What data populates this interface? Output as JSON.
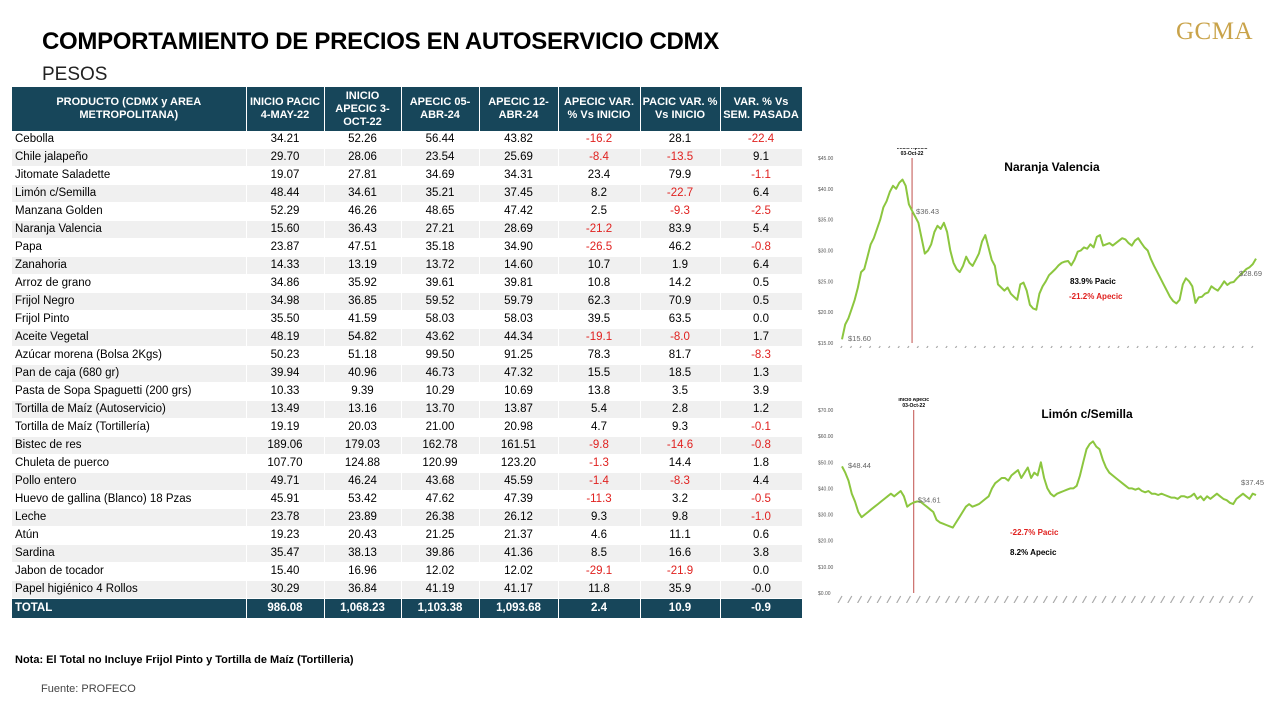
{
  "title": "COMPORTAMIENTO DE PRECIOS EN AUTOSERVICIO CDMX",
  "subtitle": "PESOS",
  "logo": "GCMA",
  "table": {
    "headers": [
      "PRODUCTO (CDMX y AREA METROPOLITANA)",
      "INICIO PACIC 4-MAY-22",
      "INICIO APECIC 3-OCT-22",
      "APECIC 05-ABR-24",
      "APECIC 12-ABR-24",
      "APECIC VAR. % Vs INICIO",
      "PACIC VAR. % Vs INICIO",
      "VAR. % Vs SEM. PASADA"
    ],
    "rows": [
      [
        "Cebolla",
        "34.21",
        "52.26",
        "56.44",
        "43.82",
        "-16.2",
        "28.1",
        "-22.4"
      ],
      [
        "Chile jalapeño",
        "29.70",
        "28.06",
        "23.54",
        "25.69",
        "-8.4",
        "-13.5",
        "9.1"
      ],
      [
        "Jitomate Saladette",
        "19.07",
        "27.81",
        "34.69",
        "34.31",
        "23.4",
        "79.9",
        "-1.1"
      ],
      [
        "Limón c/Semilla",
        "48.44",
        "34.61",
        "35.21",
        "37.45",
        "8.2",
        "-22.7",
        "6.4"
      ],
      [
        "Manzana Golden",
        "52.29",
        "46.26",
        "48.65",
        "47.42",
        "2.5",
        "-9.3",
        "-2.5"
      ],
      [
        "Naranja Valencia",
        "15.60",
        "36.43",
        "27.21",
        "28.69",
        "-21.2",
        "83.9",
        "5.4"
      ],
      [
        "Papa",
        "23.87",
        "47.51",
        "35.18",
        "34.90",
        "-26.5",
        "46.2",
        "-0.8"
      ],
      [
        "Zanahoria",
        "14.33",
        "13.19",
        "13.72",
        "14.60",
        "10.7",
        "1.9",
        "6.4"
      ],
      [
        "Arroz de grano",
        "34.86",
        "35.92",
        "39.61",
        "39.81",
        "10.8",
        "14.2",
        "0.5"
      ],
      [
        "Frijol Negro",
        "34.98",
        "36.85",
        "59.52",
        "59.79",
        "62.3",
        "70.9",
        "0.5"
      ],
      [
        "Frijol Pinto",
        "35.50",
        "41.59",
        "58.03",
        "58.03",
        "39.5",
        "63.5",
        "0.0"
      ],
      [
        "Aceite Vegetal",
        "48.19",
        "54.82",
        "43.62",
        "44.34",
        "-19.1",
        "-8.0",
        "1.7"
      ],
      [
        "Azúcar morena (Bolsa 2Kgs)",
        "50.23",
        "51.18",
        "99.50",
        "91.25",
        "78.3",
        "81.7",
        "-8.3"
      ],
      [
        "Pan de caja (680 gr)",
        "39.94",
        "40.96",
        "46.73",
        "47.32",
        "15.5",
        "18.5",
        "1.3"
      ],
      [
        "Pasta de Sopa Spaguetti (200 grs)",
        "10.33",
        "9.39",
        "10.29",
        "10.69",
        "13.8",
        "3.5",
        "3.9"
      ],
      [
        "Tortilla de Maíz (Autoservicio)",
        "13.49",
        "13.16",
        "13.70",
        "13.87",
        "5.4",
        "2.8",
        "1.2"
      ],
      [
        "Tortilla de Maíz (Tortillería)",
        "19.19",
        "20.03",
        "21.00",
        "20.98",
        "4.7",
        "9.3",
        "-0.1"
      ],
      [
        "Bistec de res",
        "189.06",
        "179.03",
        "162.78",
        "161.51",
        "-9.8",
        "-14.6",
        "-0.8"
      ],
      [
        "Chuleta de puerco",
        "107.70",
        "124.88",
        "120.99",
        "123.20",
        "-1.3",
        "14.4",
        "1.8"
      ],
      [
        "Pollo entero",
        "49.71",
        "46.24",
        "43.68",
        "45.59",
        "-1.4",
        "-8.3",
        "4.4"
      ],
      [
        "Huevo de gallina (Blanco) 18 Pzas",
        "45.91",
        "53.42",
        "47.62",
        "47.39",
        "-11.3",
        "3.2",
        "-0.5"
      ],
      [
        "Leche",
        "23.78",
        "23.89",
        "26.38",
        "26.12",
        "9.3",
        "9.8",
        "-1.0"
      ],
      [
        "Atún",
        "19.23",
        "20.43",
        "21.25",
        "21.37",
        "4.6",
        "11.1",
        "0.6"
      ],
      [
        "Sardina",
        "35.47",
        "38.13",
        "39.86",
        "41.36",
        "8.5",
        "16.6",
        "3.8"
      ],
      [
        "Jabon de tocador",
        "15.40",
        "16.96",
        "12.02",
        "12.02",
        "-29.1",
        "-21.9",
        "0.0"
      ],
      [
        "Papel higiénico 4 Rollos",
        "30.29",
        "36.84",
        "41.19",
        "41.17",
        "11.8",
        "35.9",
        "-0.0"
      ]
    ],
    "total": [
      "TOTAL",
      "986.08",
      "1,068.23",
      "1,103.38",
      "1,093.68",
      "2.4",
      "10.9",
      "-0.9"
    ]
  },
  "note": "Nota: El Total no Incluye Frijol Pinto y Tortilla de Maíz (Tortilleria)",
  "source": "Fuente:  PROFECO",
  "colors": {
    "header_bg": "#17465a",
    "negative": "#e0211f",
    "line": "#8cc63f",
    "marker": "#c0504d",
    "logo": "#c9a34a"
  },
  "chart_data": [
    {
      "type": "line",
      "title": "Naranja Valencia",
      "ylabels": [
        "$15.00",
        "$20.00",
        "$25.00",
        "$30.00",
        "$35.00",
        "$40.00",
        "$45.00"
      ],
      "ylim": [
        15,
        45
      ],
      "marker_label": "Inicio Apecic",
      "marker_date": "03-Oct-22",
      "marker_index": 22,
      "annotations": {
        "start": "$15.60",
        "marker": "$36.43",
        "end": "$28.69",
        "pacic": "83.9% Pacic",
        "apecic": "-21.2% Apecic"
      },
      "series": [
        {
          "values": [
            15.6,
            18,
            19,
            20.5,
            22,
            24,
            26.5,
            27,
            29,
            31,
            32,
            33.5,
            35,
            37,
            38,
            39.5,
            40.5,
            40,
            41,
            41.5,
            40.5,
            37.5,
            36.43,
            35.5,
            34.5,
            32,
            29.5,
            30,
            31,
            33,
            34,
            33.5,
            34.5,
            33,
            30,
            28,
            27,
            26.5,
            27.5,
            29,
            28,
            27.5,
            28.5,
            29.5,
            31.5,
            32.5,
            30.5,
            28.5,
            27.5,
            24.5,
            24,
            23.5,
            24,
            23,
            22.5,
            22,
            24.5,
            24.8,
            23.5,
            21.2,
            20.6,
            20.4,
            23,
            24.2,
            25,
            26,
            26.5,
            27,
            27.6,
            28,
            28.2,
            28.3,
            27.6,
            28.5,
            29.8,
            30,
            30.5,
            30.3,
            31,
            30.5,
            32.2,
            32.5,
            30.8,
            31,
            31.2,
            30.8,
            31.2,
            31.6,
            32,
            31.8,
            31.2,
            30.8,
            31.6,
            32,
            31.2,
            30.5,
            30,
            28.6,
            27.5,
            26.5,
            25.5,
            24.5,
            23.5,
            22.5,
            21.8,
            21.4,
            22,
            24.5,
            25.5,
            25,
            24.2,
            21.5,
            22.4,
            22.5,
            23,
            23.2,
            24.2,
            23.8,
            23.5,
            24.2,
            25,
            24.4,
            24.8,
            24.9,
            25.5,
            26,
            26.5,
            27,
            27.3,
            27.8,
            28.69
          ]
        }
      ]
    },
    {
      "type": "line",
      "title": "Limón c/Semilla",
      "ylabels": [
        "$0.00",
        "$10.00",
        "$20.00",
        "$30.00",
        "$40.00",
        "$50.00",
        "$60.00",
        "$70.00"
      ],
      "ylim": [
        0,
        70
      ],
      "marker_label": "Inicio Apecic",
      "marker_date": "03-Oct-22",
      "marker_index": 22,
      "annotations": {
        "start": "$48.44",
        "marker": "$34.61",
        "end": "$37.45",
        "pacic": "-22.7% Pacic",
        "apecic": "8.2% Apecic"
      },
      "series": [
        {
          "values": [
            48.44,
            46,
            43,
            38,
            35,
            31,
            29,
            30,
            31,
            32,
            33,
            34,
            35,
            36,
            37,
            38,
            37,
            38,
            39,
            37,
            33,
            34,
            34.61,
            35,
            35,
            34,
            33,
            32,
            31,
            28,
            27,
            26.5,
            26,
            25.5,
            25,
            27,
            29,
            31,
            33,
            34,
            33,
            33.5,
            34,
            35,
            36,
            37,
            40,
            42,
            43,
            44,
            44,
            43,
            45,
            46,
            47,
            44,
            46,
            48,
            44,
            46,
            45,
            50,
            44,
            40,
            38,
            37,
            38,
            38.5,
            39,
            39.5,
            40,
            40,
            41,
            45,
            50,
            55,
            57,
            58,
            56,
            55,
            51,
            48,
            46,
            45,
            44,
            43,
            42,
            41,
            40,
            40,
            39.5,
            40,
            39,
            38.5,
            39,
            38,
            38,
            37.5,
            38,
            37.5,
            37,
            36.5,
            36.5,
            36,
            37,
            37,
            36.5,
            37,
            38,
            36,
            37,
            35.5,
            37,
            36,
            37,
            38,
            37,
            36,
            35.5,
            34.5,
            34,
            36,
            37,
            38,
            37,
            36,
            38,
            37.45
          ]
        }
      ]
    }
  ]
}
